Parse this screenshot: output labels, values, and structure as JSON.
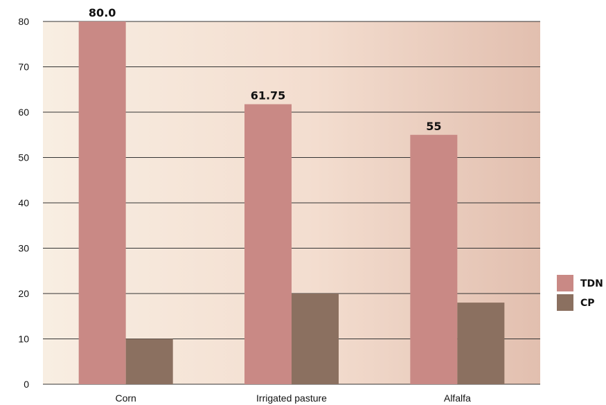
{
  "chart_data": {
    "type": "bar",
    "categories": [
      "Corn",
      "Irrigated pasture",
      "Alfalfa"
    ],
    "series": [
      {
        "name": "TDN",
        "values": [
          80.0,
          61.75,
          55
        ],
        "data_labels": [
          "80.0",
          "61.75",
          "55"
        ]
      },
      {
        "name": "CP",
        "values": [
          10,
          20,
          18
        ],
        "data_labels": []
      }
    ],
    "title": "",
    "xlabel": "",
    "ylabel": "",
    "ylim": [
      0,
      80
    ],
    "yticks": [
      0,
      10,
      20,
      30,
      40,
      50,
      60,
      70,
      80
    ],
    "grid": true,
    "legend_position": "right",
    "colors": {
      "TDN": "#c98985",
      "CP": "#8b7060",
      "background_left": "#f8eee2",
      "background_right": "#e2bfaf",
      "gridline": "#333333"
    }
  }
}
